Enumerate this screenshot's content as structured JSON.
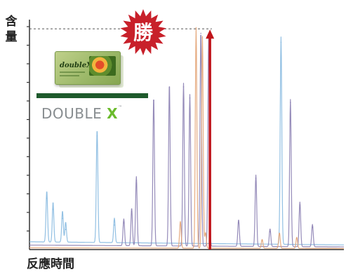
{
  "labels": {
    "y_axis": "含量",
    "x_axis": "反應時間",
    "badge": "勝"
  },
  "brand": {
    "name_main": "DOUBLE ",
    "name_accent": "X",
    "trademark": "™",
    "product_box_text": "doubleX"
  },
  "colors": {
    "blue_trace": "#86b9e0",
    "purple_trace": "#8b7fb3",
    "orange_trace": "#e3a374",
    "red_arrow": "#c0141b",
    "badge_fill": "#c8202a",
    "green_bar": "#1e5a2c",
    "brand_gray": "#888d90",
    "brand_green": "#6bbb2c"
  },
  "chart_data": {
    "type": "line",
    "title": "",
    "xlabel": "反應時間",
    "ylabel": "含量",
    "ylim": [
      0,
      1
    ],
    "xlim": [
      0,
      1
    ],
    "grid": false,
    "y_ticks": 12,
    "max_level": 0.99,
    "series": [
      {
        "color": "#86b9e0",
        "peaks": [
          {
            "x": 0.055,
            "h": 0.23
          },
          {
            "x": 0.075,
            "h": 0.18
          },
          {
            "x": 0.105,
            "h": 0.14
          },
          {
            "x": 0.115,
            "h": 0.09
          },
          {
            "x": 0.215,
            "h": 0.51
          },
          {
            "x": 0.27,
            "h": 0.11
          },
          {
            "x": 0.8,
            "h": 0.93
          }
        ]
      },
      {
        "color": "#8b7fb3",
        "peaks": [
          {
            "x": 0.3,
            "h": 0.12
          },
          {
            "x": 0.325,
            "h": 0.17
          },
          {
            "x": 0.34,
            "h": 0.31
          },
          {
            "x": 0.395,
            "h": 0.67
          },
          {
            "x": 0.445,
            "h": 0.73
          },
          {
            "x": 0.49,
            "h": 0.73
          },
          {
            "x": 0.51,
            "h": 0.68
          },
          {
            "x": 0.545,
            "h": 0.97
          },
          {
            "x": 0.57,
            "h": 0.95
          },
          {
            "x": 0.665,
            "h": 0.12
          },
          {
            "x": 0.72,
            "h": 0.32
          },
          {
            "x": 0.765,
            "h": 0.08
          },
          {
            "x": 0.83,
            "h": 0.66
          },
          {
            "x": 0.86,
            "h": 0.2
          },
          {
            "x": 0.9,
            "h": 0.1
          }
        ]
      },
      {
        "color": "#e3a374",
        "peaks": [
          {
            "x": 0.48,
            "h": 0.12
          },
          {
            "x": 0.53,
            "h": 0.99
          },
          {
            "x": 0.55,
            "h": 0.95
          },
          {
            "x": 0.56,
            "h": 0.07
          },
          {
            "x": 0.74,
            "h": 0.04
          },
          {
            "x": 0.795,
            "h": 0.07
          },
          {
            "x": 0.85,
            "h": 0.05
          }
        ]
      }
    ]
  }
}
